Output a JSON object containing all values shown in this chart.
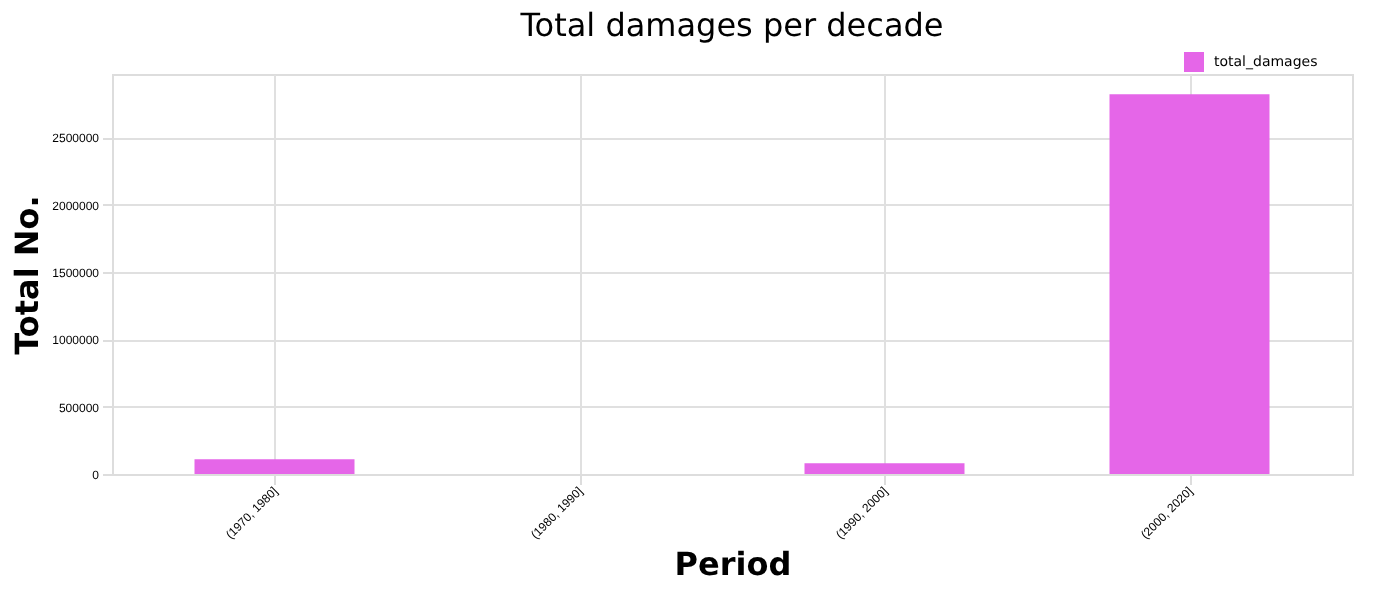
{
  "chart_data": {
    "type": "bar",
    "title": "Total damages per decade",
    "xlabel": "Period",
    "ylabel": "Total No.",
    "categories": [
      "(1970, 1980]",
      "(1980, 1990]",
      "(1990, 2000]",
      "(2000, 2020]"
    ],
    "series": [
      {
        "name": "total_damages",
        "color": "#e566e8",
        "values": [
          110000,
          0,
          80000,
          2820000
        ]
      }
    ],
    "ylim": [
      0,
      2970000
    ],
    "yticks": [
      0,
      500000,
      1000000,
      1500000,
      2000000,
      2500000
    ],
    "grid": true,
    "legend": "top right"
  }
}
